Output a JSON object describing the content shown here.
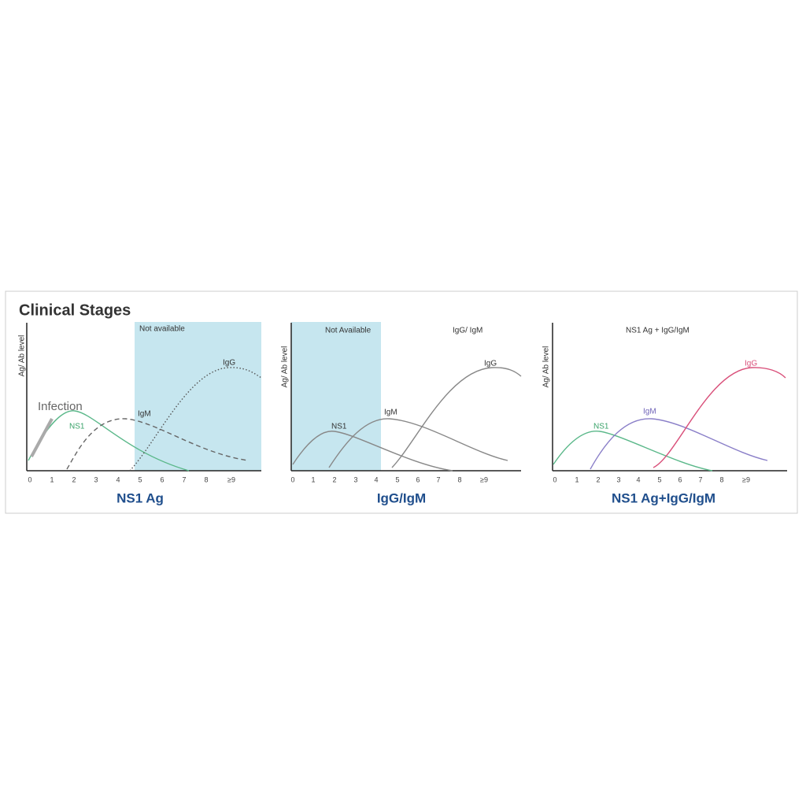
{
  "title": "Clinical Stages",
  "panels": [
    {
      "y_label": "Ag/ Ab level",
      "shaded_label": "Not available",
      "annotation": "Infection",
      "x_ticks": [
        "0",
        "1",
        "2",
        "3",
        "4",
        "5",
        "6",
        "7",
        "8",
        "≥9"
      ],
      "curve_labels": [
        "NS1",
        "IgM",
        "IgG"
      ],
      "caption": "NS1 Ag"
    },
    {
      "y_label": "Ag/ Ab level",
      "shaded_label": "Not Available",
      "header": "IgG/ IgM",
      "x_ticks": [
        "0",
        "1",
        "2",
        "3",
        "4",
        "5",
        "6",
        "7",
        "8",
        "≥9"
      ],
      "curve_labels": [
        "NS1",
        "IgM",
        "IgG"
      ],
      "caption": "IgG/IgM"
    },
    {
      "y_label": "Ag/ Ab level",
      "header": "NS1 Ag + IgG/IgM",
      "x_ticks": [
        "0",
        "1",
        "2",
        "3",
        "4",
        "5",
        "6",
        "7",
        "8",
        "≥9"
      ],
      "curve_labels": [
        "NS1",
        "IgM",
        "IgG"
      ],
      "caption": "NS1 Ag+IgG/IgM"
    }
  ]
}
